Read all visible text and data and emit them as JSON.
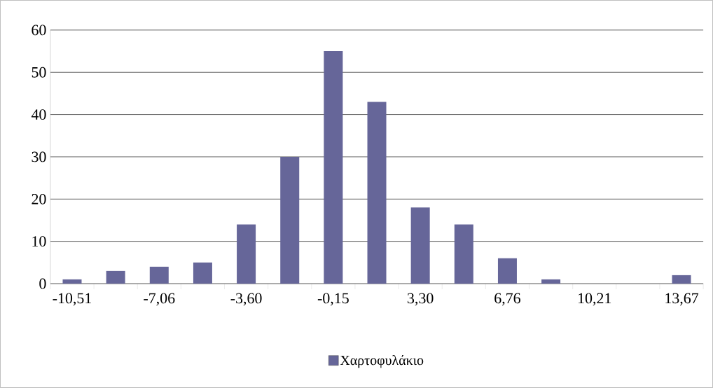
{
  "chart_data": {
    "type": "bar",
    "categories": [
      "-10,51",
      null,
      "-7,06",
      null,
      "-3,60",
      null,
      "-0,15",
      null,
      "3,30",
      null,
      "6,76",
      null,
      "10,21",
      null,
      "13,67"
    ],
    "series": [
      {
        "name": "Χαρτοφυλάκιο",
        "color": "#666699",
        "values": [
          1,
          3,
          4,
          5,
          14,
          30,
          55,
          43,
          18,
          14,
          6,
          1,
          0,
          0,
          2
        ]
      }
    ],
    "ylim": [
      0,
      60
    ],
    "yticks": [
      0,
      10,
      20,
      30,
      40,
      50,
      60
    ],
    "grid": "y",
    "legend": "bottom"
  }
}
